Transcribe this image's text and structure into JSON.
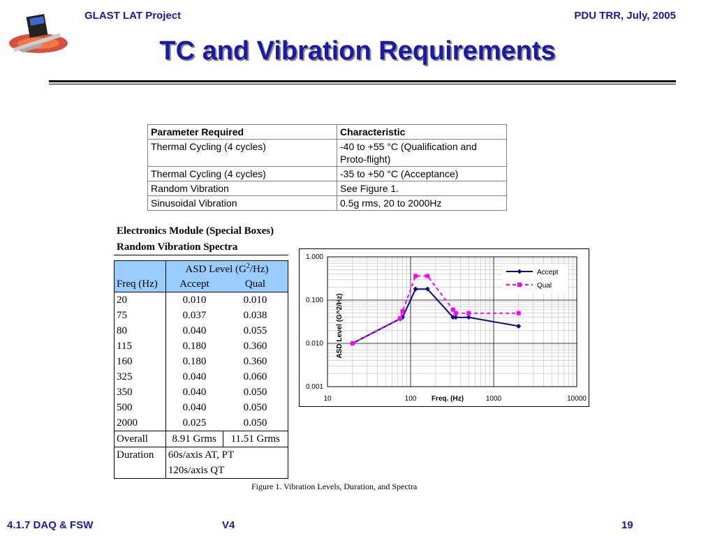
{
  "header": {
    "left": "GLAST LAT Project",
    "right": "PDU TRR, July, 2005"
  },
  "title": "TC and Vibration Requirements",
  "requirements": {
    "headers": [
      "Parameter Required",
      "Characteristic"
    ],
    "rows": [
      [
        "Thermal Cycling (4 cycles)",
        "-40 to +55 °C (Qualification and Proto-flight)"
      ],
      [
        "Thermal Cycling (4 cycles)",
        "-35 to +50 °C (Acceptance)"
      ],
      [
        "Random Vibration",
        "See Figure 1."
      ],
      [
        "Sinusoidal Vibration",
        "0.5g rms, 20 to 2000Hz"
      ]
    ]
  },
  "spectra_table": {
    "title_line1": "Electronics Module (Special Boxes)",
    "title_line2": "Random Vibration Spectra",
    "asd_header_pre": "ASD Level (G",
    "asd_header_sup": "2",
    "asd_header_post": "/Hz)",
    "col_freq": "Freq (Hz)",
    "col_accept": "Accept",
    "col_qual": "Qual",
    "rows": [
      [
        "20",
        "0.010",
        "0.010"
      ],
      [
        "75",
        "0.037",
        "0.038"
      ],
      [
        "80",
        "0.040",
        "0.055"
      ],
      [
        "115",
        "0.180",
        "0.360"
      ],
      [
        "160",
        "0.180",
        "0.360"
      ],
      [
        "325",
        "0.040",
        "0.060"
      ],
      [
        "350",
        "0.040",
        "0.050"
      ],
      [
        "500",
        "0.040",
        "0.050"
      ],
      [
        "2000",
        "0.025",
        "0.050"
      ]
    ],
    "overall_label": "Overall",
    "overall_accept": "8.91 Grms",
    "overall_qual": "11.51 Grms",
    "duration_label": "Duration",
    "duration_line1": "60s/axis AT, PT",
    "duration_line2": "120s/axis QT"
  },
  "caption": "Figure 1. Vibration Levels, Duration, and Spectra",
  "chart_data": {
    "type": "line",
    "xscale": "log",
    "yscale": "log",
    "xlim": [
      10,
      10000
    ],
    "ylim": [
      0.001,
      1
    ],
    "xlabel": "Freq. (Hz)",
    "ylabel": "ASD Level (G^2/Hz)",
    "xticks": [
      "10",
      "100",
      "1000",
      "10000"
    ],
    "yticks": [
      "0.001",
      "0.010",
      "0.100",
      "1.000"
    ],
    "grid": true,
    "legend_position": "top-right",
    "series": [
      {
        "name": "Accept",
        "color": "#000080",
        "style": "solid",
        "marker": "diamond",
        "x": [
          20,
          75,
          80,
          115,
          160,
          325,
          350,
          500,
          2000
        ],
        "y": [
          0.01,
          0.037,
          0.04,
          0.18,
          0.18,
          0.04,
          0.04,
          0.04,
          0.025
        ]
      },
      {
        "name": "Qual",
        "color": "#ff00ff",
        "style": "dashed",
        "marker": "square",
        "x": [
          20,
          75,
          80,
          115,
          160,
          325,
          350,
          500,
          2000
        ],
        "y": [
          0.01,
          0.038,
          0.055,
          0.36,
          0.36,
          0.06,
          0.05,
          0.05,
          0.05
        ]
      }
    ]
  },
  "footer": {
    "left": "4.1.7 DAQ & FSW",
    "center": "V4",
    "right": "19"
  }
}
